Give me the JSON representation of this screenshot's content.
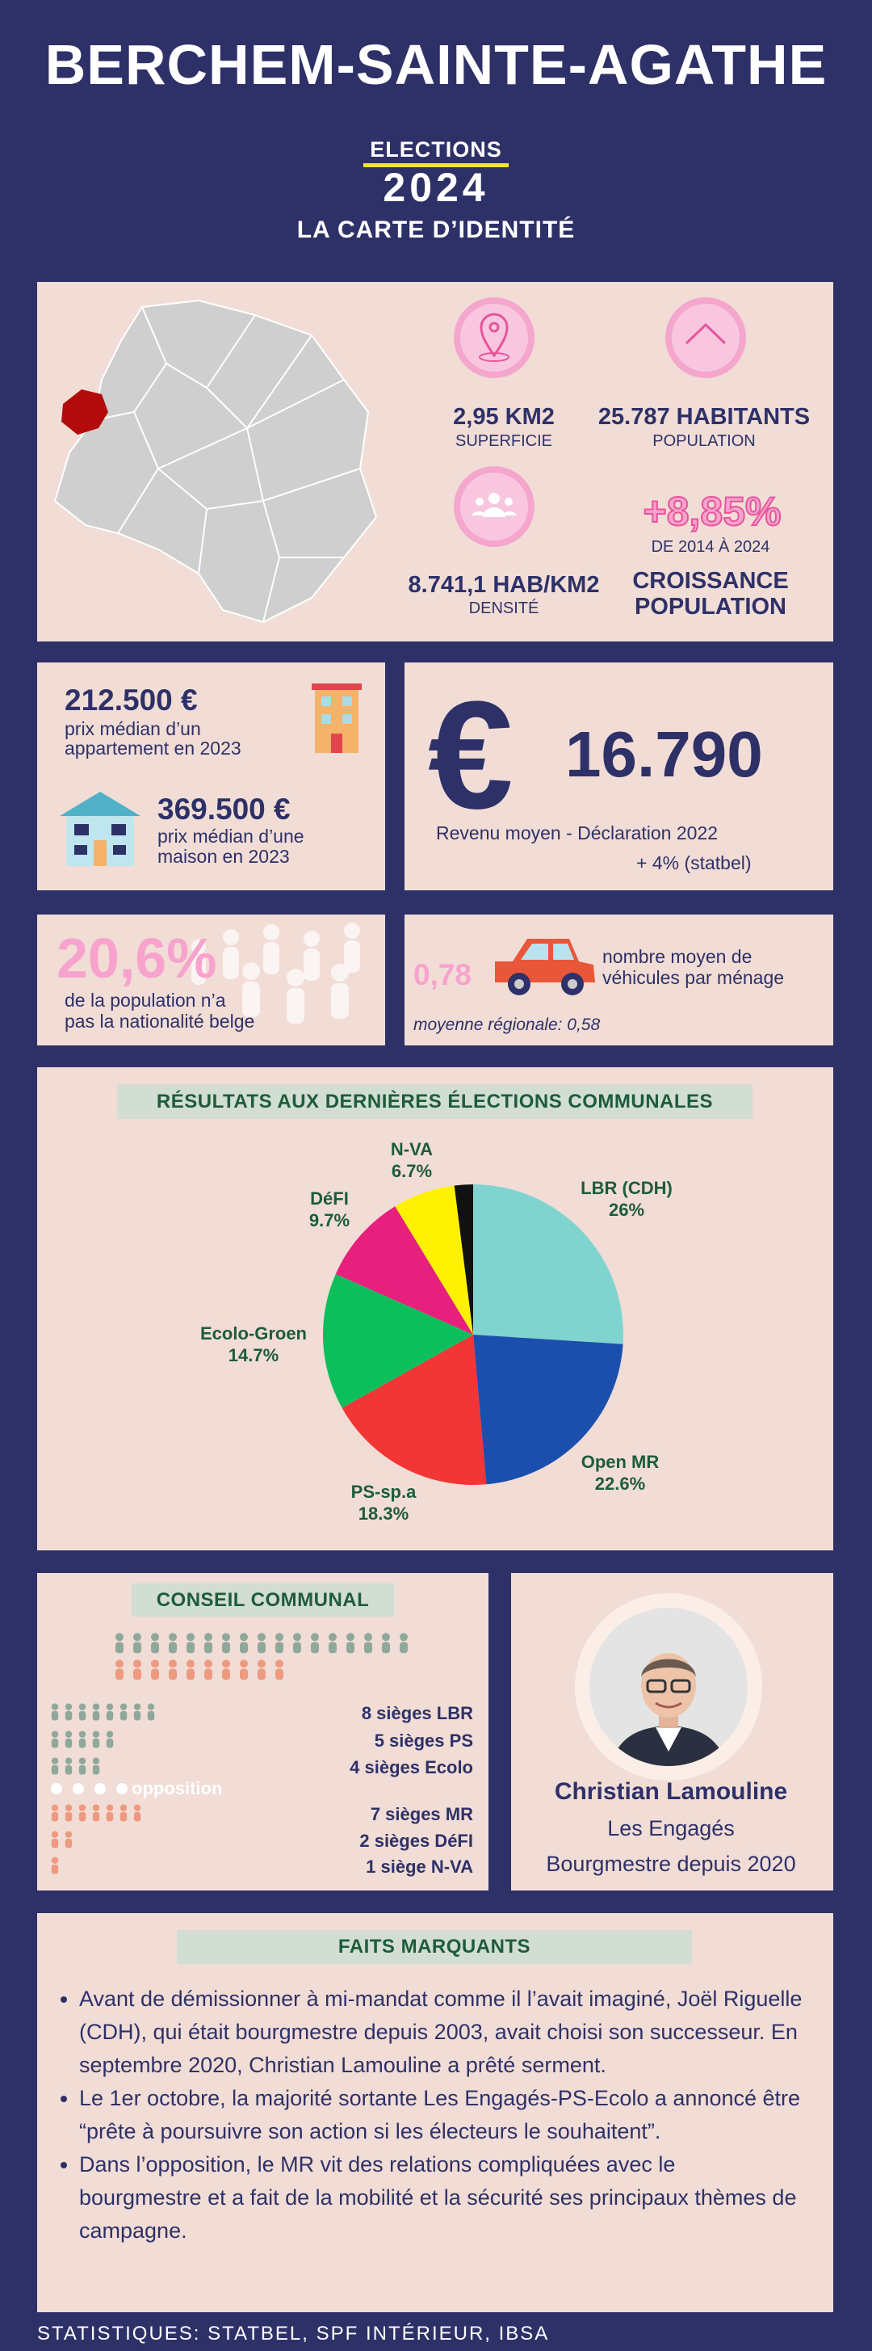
{
  "header": {
    "title": "BERCHEM-SAINTE-AGATHE",
    "elections": "ELECTIONS",
    "year": "2024",
    "subtitle": "LA CARTE D’IDENTITÉ"
  },
  "stats": [
    {
      "value": "2,95 KM2",
      "label": "SUPERFICIE"
    },
    {
      "value": "25.787 HABITANTS",
      "label": "POPULATION"
    },
    {
      "value": "8.741,1 HAB/KM2",
      "label": "DENSITÉ"
    },
    {
      "value": "+8,85%",
      "label": "DE 2014 À 2024",
      "caption": [
        "CROISSANCE",
        "POPULATION"
      ]
    }
  ],
  "housing": [
    {
      "price": "212.500 €",
      "text": [
        "prix médian d’un",
        "appartement en 2023"
      ]
    },
    {
      "price": "369.500 €",
      "text": [
        "prix médian d’une",
        "maison en 2023"
      ]
    }
  ],
  "income": {
    "symbol": "€",
    "value": "16.790",
    "label": "Revenu moyen - Déclaration 2022",
    "note": "+ 4% (statbel)"
  },
  "nationality": {
    "value": "20,6%",
    "text": [
      "de la population n’a",
      "pas la nationalité belge"
    ]
  },
  "vehicles": {
    "value": "0,78",
    "text": [
      "nombre moyen de",
      "véhicules par ménage"
    ],
    "note": "moyenne régionale: 0,58"
  },
  "chart_data": {
    "type": "pie",
    "title": "RÉSULTATS AUX DERNIÈRES ÉLECTIONS COMMUNALES",
    "categories": [
      "LBR (CDH)",
      "Open MR",
      "PS-sp.a",
      "Ecolo-Groen",
      "DéFI",
      "N-VA",
      null
    ],
    "values": [
      26,
      22.6,
      18.3,
      14.7,
      9.7,
      6.7,
      2
    ],
    "value_labels": [
      "26%",
      "22.6%",
      "18.3%",
      "14.7%",
      "9.7%",
      "6.7%",
      null
    ],
    "colors": [
      "#7fd4d0",
      "#1b4fae",
      "#f23535",
      "#0cbf5c",
      "#e8207d",
      "#fff200",
      "#111111"
    ]
  },
  "council": {
    "title": "CONSEIL COMMUNAL",
    "majority": [
      {
        "label": "8 sièges LBR",
        "count": 8
      },
      {
        "label": "5 sièges PS",
        "count": 5
      },
      {
        "label": "4 sièges Ecolo",
        "count": 4
      }
    ],
    "opposition_label": "opposition",
    "opposition": [
      {
        "label": "7 sièges MR",
        "count": 7
      },
      {
        "label": "2 sièges DéFI",
        "count": 2
      },
      {
        "label": "1 siège N-VA",
        "count": 1
      }
    ]
  },
  "mayor": {
    "name": "Christian Lamouline",
    "party": "Les Engagés",
    "role": "Bourgmestre depuis 2020"
  },
  "facts": {
    "title": "FAITS MARQUANTS",
    "items": [
      "Avant de démissionner à mi-mandat comme il l’avait imaginé, Joël Riguelle (CDH), qui était bourgmestre depuis 2003, avait choisi son successeur. En septembre 2020, Christian Lamouline a prêté serment.",
      "Le 1er octobre, la majorité sortante Les Engagés-PS-Ecolo a annoncé être “prête à poursuivre son action si les électeurs le souhaitent”.",
      "Dans l’opposition, le MR vit des relations compliquées avec le bourgmestre et a fait de la mobilité et la sécurité ses principaux thèmes de campagne."
    ]
  },
  "footer": "STATISTIQUES: STATBEL, SPF INTÉRIEUR, IBSA"
}
